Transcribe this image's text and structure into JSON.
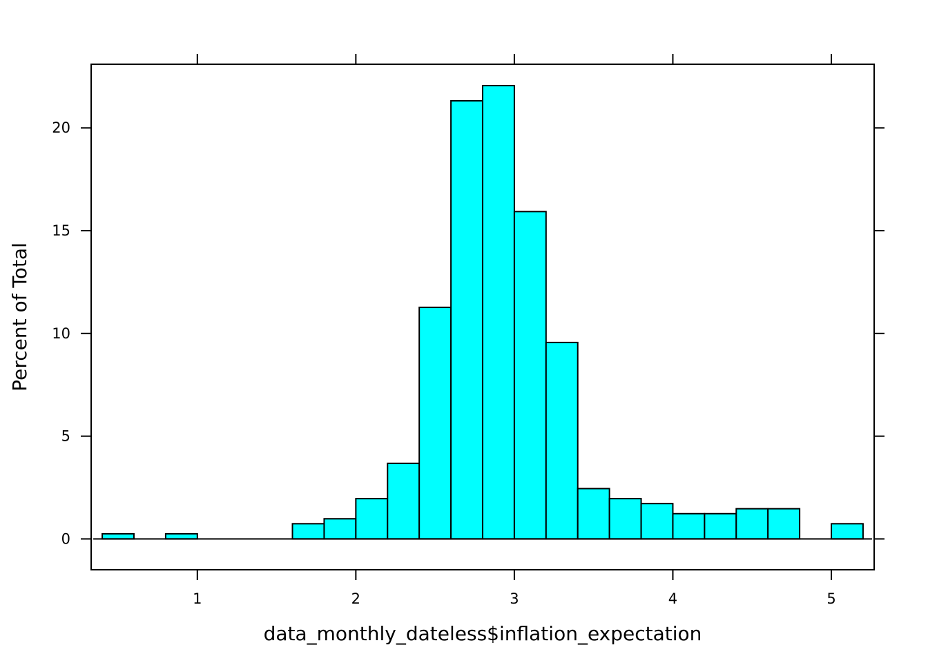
{
  "chart_data": {
    "type": "bar",
    "title": "",
    "xlabel": "data_monthly_dateless$inflation_expectation",
    "ylabel": "Percent of Total",
    "xlim": [
      0.33,
      5.27
    ],
    "ylim": [
      -1.5,
      23.1
    ],
    "grid": false,
    "legend": "none",
    "bar_color": "#00ffff",
    "bar_edge_color": "#000000",
    "x_ticks": [
      1,
      2,
      3,
      4,
      5
    ],
    "x_tick_labels": [
      "1",
      "2",
      "3",
      "4",
      "5"
    ],
    "y_ticks": [
      0,
      5,
      10,
      15,
      20
    ],
    "y_tick_labels": [
      "0",
      "5",
      "10",
      "15",
      "20"
    ],
    "bins": [
      {
        "x0": 0.4,
        "x1": 0.6,
        "value": 0.25
      },
      {
        "x0": 0.6,
        "x1": 0.8,
        "value": 0
      },
      {
        "x0": 0.8,
        "x1": 1.0,
        "value": 0.25
      },
      {
        "x0": 1.0,
        "x1": 1.2,
        "value": 0
      },
      {
        "x0": 1.2,
        "x1": 1.4,
        "value": 0
      },
      {
        "x0": 1.4,
        "x1": 1.6,
        "value": 0
      },
      {
        "x0": 1.6,
        "x1": 1.8,
        "value": 0.74
      },
      {
        "x0": 1.8,
        "x1": 2.0,
        "value": 0.98
      },
      {
        "x0": 2.0,
        "x1": 2.2,
        "value": 1.96
      },
      {
        "x0": 2.2,
        "x1": 2.4,
        "value": 3.68
      },
      {
        "x0": 2.4,
        "x1": 2.6,
        "value": 11.27
      },
      {
        "x0": 2.6,
        "x1": 2.8,
        "value": 21.32
      },
      {
        "x0": 2.8,
        "x1": 3.0,
        "value": 22.06
      },
      {
        "x0": 3.0,
        "x1": 3.2,
        "value": 15.93
      },
      {
        "x0": 3.2,
        "x1": 3.4,
        "value": 9.56
      },
      {
        "x0": 3.4,
        "x1": 3.6,
        "value": 2.45
      },
      {
        "x0": 3.6,
        "x1": 3.8,
        "value": 1.96
      },
      {
        "x0": 3.8,
        "x1": 4.0,
        "value": 1.72
      },
      {
        "x0": 4.0,
        "x1": 4.2,
        "value": 1.23
      },
      {
        "x0": 4.2,
        "x1": 4.4,
        "value": 1.23
      },
      {
        "x0": 4.4,
        "x1": 4.6,
        "value": 1.47
      },
      {
        "x0": 4.6,
        "x1": 4.8,
        "value": 1.47
      },
      {
        "x0": 4.8,
        "x1": 5.0,
        "value": 0
      },
      {
        "x0": 5.0,
        "x1": 5.2,
        "value": 0.74
      }
    ]
  }
}
